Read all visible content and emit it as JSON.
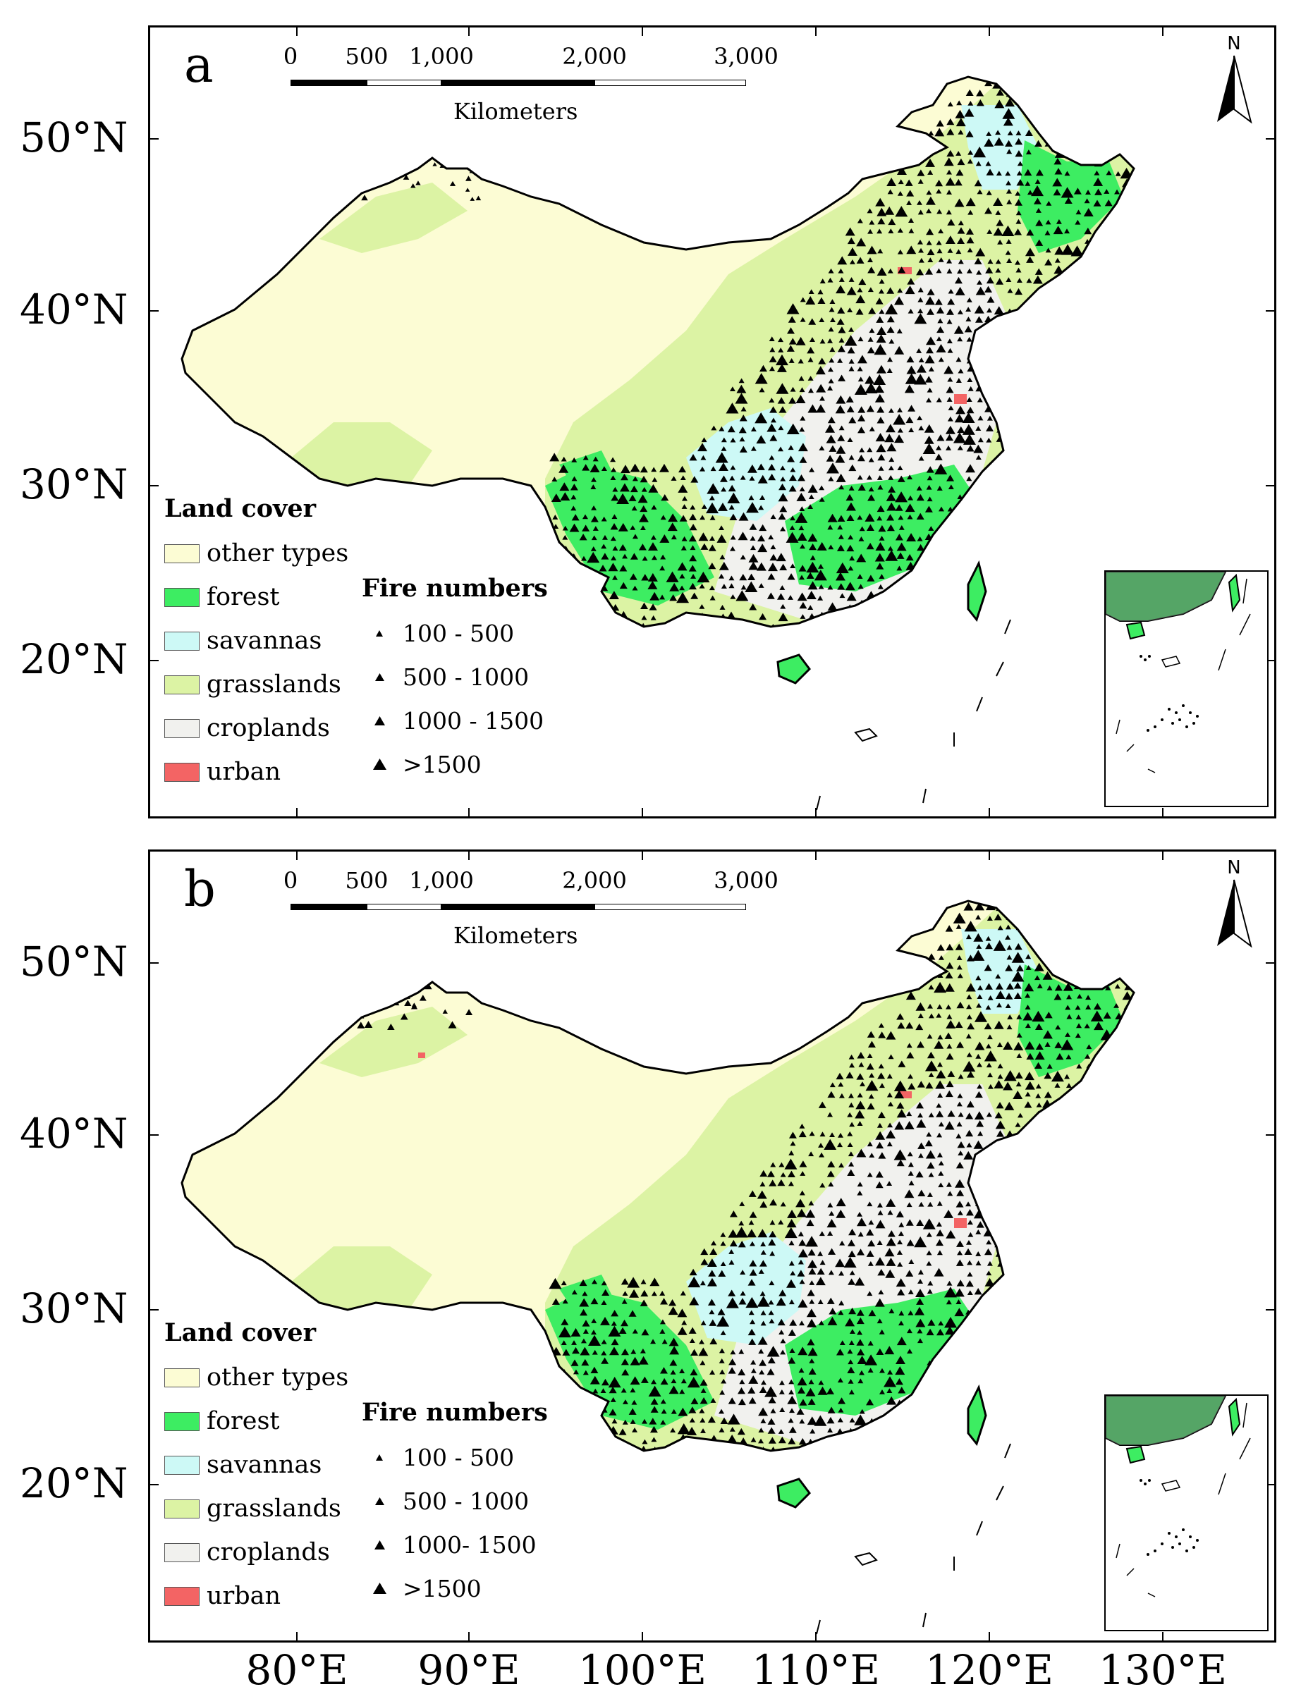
{
  "colors": {
    "other_types": "#fcfcd4",
    "forest": "#3ded62",
    "savannas": "#cdf9f6",
    "grasslands": "#dcf3a4",
    "croplands": "#f1f1ee",
    "urban": "#f36464",
    "fire_marker": "#000000"
  },
  "axes": {
    "latitude_labels": [
      "50°N",
      "40°N",
      "30°N",
      "20°N"
    ],
    "longitude_labels": [
      "80°E",
      "90°E",
      "100°E",
      "110°E",
      "120°E",
      "130°E"
    ]
  },
  "panels": [
    {
      "letter": "a",
      "scale": {
        "ticks": [
          "0",
          "500",
          "1,000",
          "2,000",
          "3,000"
        ],
        "units": "Kilometers"
      },
      "north_label": "N",
      "land_cover": {
        "title": "Land cover",
        "items": [
          {
            "label": "other types",
            "color": "#fcfcd4"
          },
          {
            "label": "forest",
            "color": "#3ded62"
          },
          {
            "label": "savannas",
            "color": "#cdf9f6"
          },
          {
            "label": "grasslands",
            "color": "#dcf3a4"
          },
          {
            "label": "croplands",
            "color": "#f1f1ee"
          },
          {
            "label": "urban",
            "color": "#f36464"
          }
        ]
      },
      "fire_numbers": {
        "title": "Fire numbers",
        "items": [
          "100 - 500",
          "500 - 1000",
          "1000 - 1500",
          ">1500"
        ]
      }
    },
    {
      "letter": "b",
      "scale": {
        "ticks": [
          "0",
          "500",
          "1,000",
          "2,000",
          "3,000"
        ],
        "units": "Kilometers"
      },
      "north_label": "N",
      "land_cover": {
        "title": "Land cover",
        "items": [
          {
            "label": "other types",
            "color": "#fcfcd4"
          },
          {
            "label": "forest",
            "color": "#3ded62"
          },
          {
            "label": "savannas",
            "color": "#cdf9f6"
          },
          {
            "label": "grasslands",
            "color": "#dcf3a4"
          },
          {
            "label": "croplands",
            "color": "#f1f1ee"
          },
          {
            "label": "urban",
            "color": "#f36464"
          }
        ]
      },
      "fire_numbers": {
        "title": "Fire numbers",
        "items": [
          "100 - 500",
          "500 - 1000",
          "1000- 1500",
          ">1500"
        ]
      }
    }
  ]
}
